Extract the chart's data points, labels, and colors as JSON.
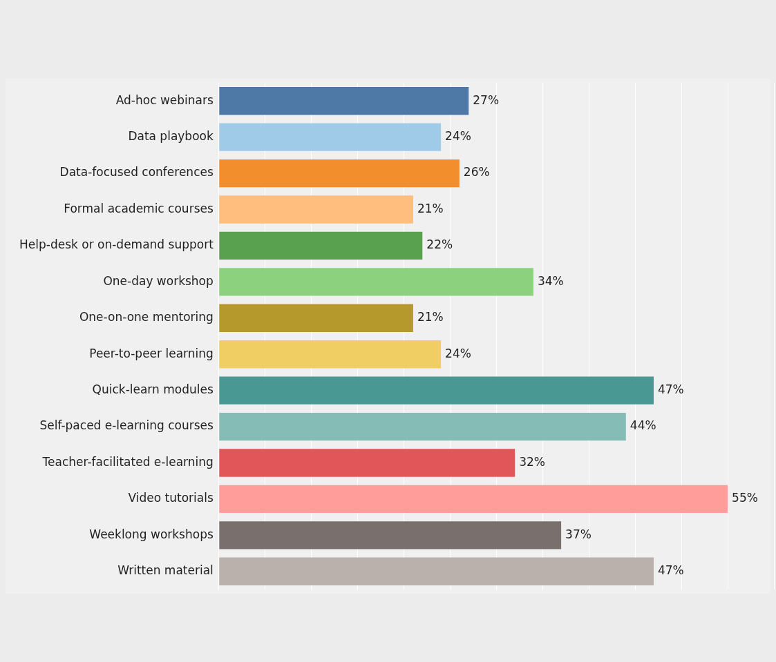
{
  "chart_data": {
    "type": "bar",
    "orientation": "horizontal",
    "categories": [
      "Ad-hoc webinars",
      "Data playbook",
      "Data-focused conferences",
      "Formal academic courses",
      "Help-desk or on-demand support",
      "One-day workshop",
      "One-on-one mentoring",
      "Peer-to-peer learning",
      "Quick-learn modules",
      "Self-paced e-learning courses",
      "Teacher-facilitated e-learning",
      "Video tutorials",
      "Weeklong workshops",
      "Written material"
    ],
    "values": [
      27,
      24,
      26,
      21,
      22,
      34,
      21,
      24,
      47,
      44,
      32,
      55,
      37,
      47
    ],
    "value_labels": [
      "27%",
      "24%",
      "26%",
      "21%",
      "22%",
      "34%",
      "21%",
      "24%",
      "47%",
      "44%",
      "32%",
      "55%",
      "37%",
      "47%"
    ],
    "colors": [
      "#4e79a7",
      "#a0cbe8",
      "#f28e2b",
      "#ffbe7d",
      "#59a14f",
      "#8cd17d",
      "#b6992d",
      "#f1ce63",
      "#499894",
      "#86bcb6",
      "#e15759",
      "#ff9d9a",
      "#79706e",
      "#bab0ac"
    ],
    "xlim": [
      0,
      60
    ],
    "xticks": [
      {
        "value": 0,
        "label": null
      },
      {
        "value": 5,
        "label": null
      },
      {
        "value": 10,
        "label": null
      },
      {
        "value": 15,
        "label": null
      },
      {
        "value": 20,
        "label": null
      },
      {
        "value": 25,
        "label": null
      },
      {
        "value": 30,
        "label": null
      },
      {
        "value": 35,
        "label": null
      },
      {
        "value": 40,
        "label": null
      },
      {
        "value": 45,
        "label": null
      },
      {
        "value": 50,
        "label": null
      },
      {
        "value": 55,
        "label": null
      },
      {
        "value": 60,
        "label": null
      }
    ],
    "grid": "x",
    "tick_labels": "y",
    "legend": false
  }
}
